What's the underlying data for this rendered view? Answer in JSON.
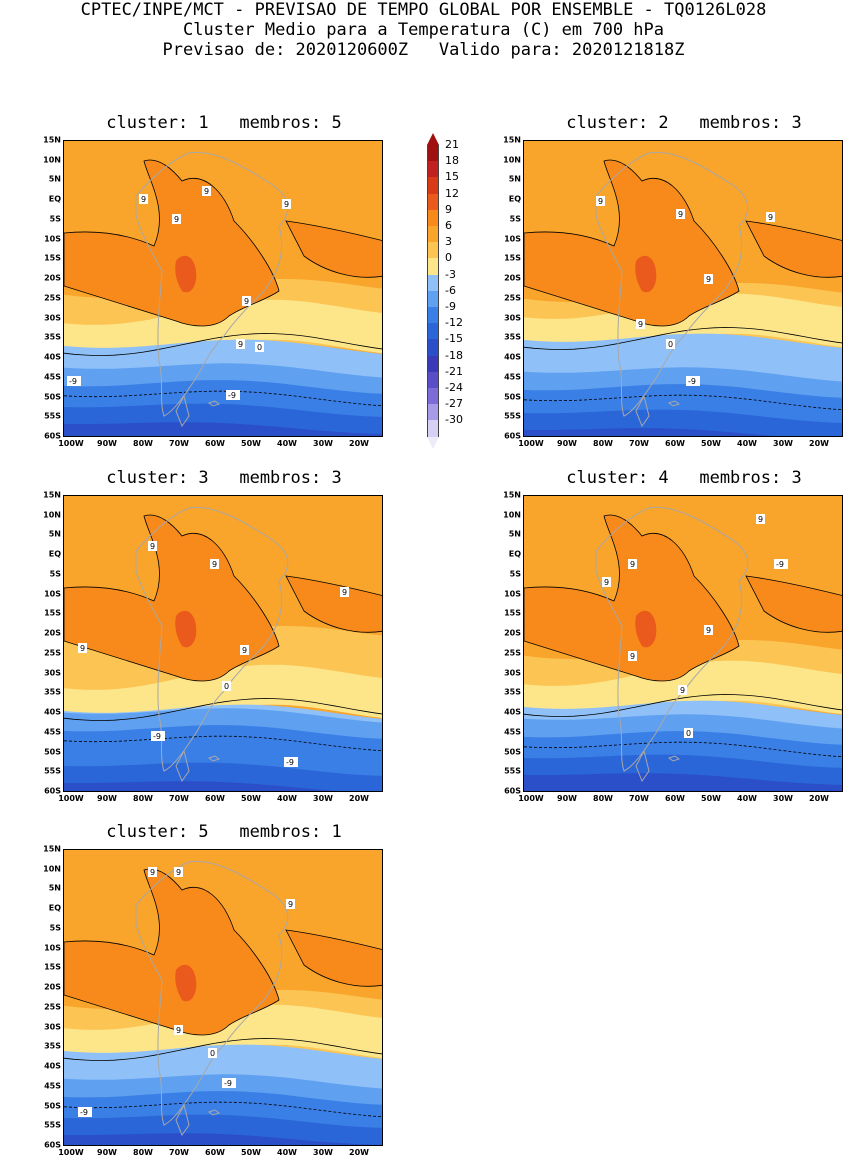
{
  "header": {
    "line1": "CPTEC/INPE/MCT - PREVISAO DE TEMPO GLOBAL POR ENSEMBLE - TQ0126L028",
    "line2": "Cluster Medio para a Temperatura (C) em 700 hPa",
    "line3": "Previsao de: 2020120600Z   Valido para: 2020121818Z"
  },
  "lat_labels": [
    "15N",
    "10N",
    "5N",
    "EQ",
    "5S",
    "10S",
    "15S",
    "20S",
    "25S",
    "30S",
    "35S",
    "40S",
    "45S",
    "50S",
    "55S",
    "60S"
  ],
  "lon_labels": [
    "100W",
    "90W",
    "80W",
    "70W",
    "60W",
    "50W",
    "40W",
    "30W",
    "20W"
  ],
  "colorbar": [
    {
      "label": "21",
      "color": "#a01010"
    },
    {
      "label": "18",
      "color": "#c02020"
    },
    {
      "label": "15",
      "color": "#d83a18"
    },
    {
      "label": "12",
      "color": "#ea5a1c"
    },
    {
      "label": "9",
      "color": "#f78a1a"
    },
    {
      "label": "6",
      "color": "#f9a42a"
    },
    {
      "label": "3",
      "color": "#fbc453"
    },
    {
      "label": "0",
      "color": "#fde68a"
    },
    {
      "label": "-3",
      "color": "#8fc0f8"
    },
    {
      "label": "-6",
      "color": "#5fa0f0"
    },
    {
      "label": "-9",
      "color": "#3a7fe6"
    },
    {
      "label": "-12",
      "color": "#2a66d8"
    },
    {
      "label": "-15",
      "color": "#2a4fc8"
    },
    {
      "label": "-18",
      "color": "#3a3ab8"
    },
    {
      "label": "-21",
      "color": "#5a4ec8"
    },
    {
      "label": "-24",
      "color": "#7c6cd8"
    },
    {
      "label": "-27",
      "color": "#a89ae6"
    },
    {
      "label": "-30",
      "color": "#d6d0f4"
    }
  ],
  "panels": [
    {
      "title": "cluster: 1   membros: 5",
      "contour_labels": [
        "9",
        "9",
        "9",
        "9",
        "9",
        "9",
        "0",
        "-9",
        "-9"
      ]
    },
    {
      "title": "cluster: 2   membros: 3",
      "contour_labels": [
        "9",
        "9",
        "9",
        "9",
        "9",
        "0",
        "-9"
      ]
    },
    {
      "title": "cluster: 3   membros: 3",
      "contour_labels": [
        "9",
        "9",
        "9",
        "9",
        "9",
        "0",
        "-9",
        "-9"
      ]
    },
    {
      "title": "cluster: 4   membros: 3",
      "contour_labels": [
        "9",
        "9",
        "9",
        "9",
        "9",
        "9",
        "0",
        "-9"
      ]
    },
    {
      "title": "cluster: 5   membros: 1",
      "contour_labels": [
        "9",
        "9",
        "9",
        "9",
        "0",
        "-9",
        "-9"
      ]
    }
  ]
}
